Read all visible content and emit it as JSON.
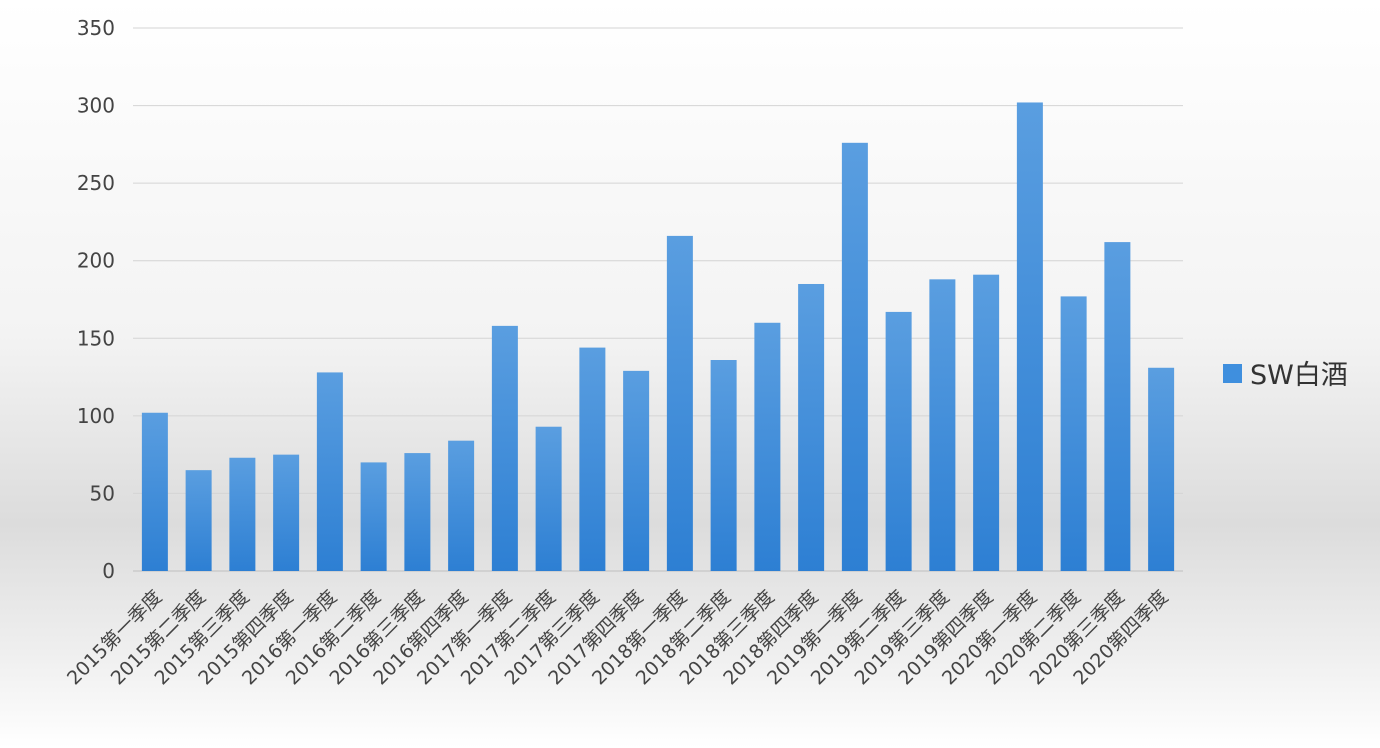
{
  "chart_data": {
    "type": "bar",
    "title": "",
    "xlabel": "",
    "ylabel": "",
    "ylim": [
      0,
      350
    ],
    "yticks": [
      0,
      50,
      100,
      150,
      200,
      250,
      300,
      350
    ],
    "grid": true,
    "legend_position": "right",
    "categories": [
      "2015第一季度",
      "2015第二季度",
      "2015第三季度",
      "2015第四季度",
      "2016第一季度",
      "2016第二季度",
      "2016第三季度",
      "2016第四季度",
      "2017第一季度",
      "2017第二季度",
      "2017第三季度",
      "2017第四季度",
      "2018第一季度",
      "2018第二季度",
      "2018第三季度",
      "2018第四季度",
      "2019第一季度",
      "2019第二季度",
      "2019第三季度",
      "2019第四季度",
      "2020第一季度",
      "2020第二季度",
      "2020第三季度",
      "2020第四季度"
    ],
    "series": [
      {
        "name": "SW白酒",
        "color": "#3f8fde",
        "values": [
          102,
          65,
          73,
          75,
          128,
          70,
          76,
          84,
          158,
          93,
          144,
          129,
          216,
          136,
          160,
          185,
          276,
          167,
          188,
          191,
          302,
          177,
          212,
          131
        ]
      }
    ]
  }
}
